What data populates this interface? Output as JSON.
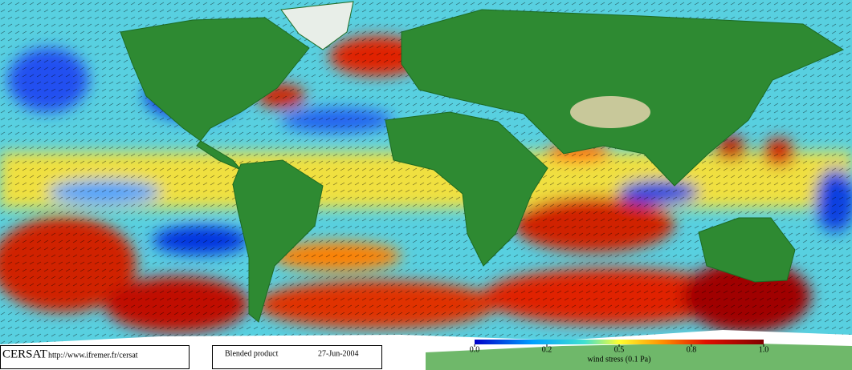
{
  "footer": {
    "logo": "CERSAT",
    "url": "http://www.ifremer.fr/cersat",
    "product": "Blended product",
    "date": "27-Jun-2004"
  },
  "colorbar": {
    "label": "wind stress (0.1 Pa)",
    "ticks": [
      {
        "value": 0,
        "label": "0.0"
      },
      0.2,
      0.5,
      0.8,
      {
        "value": 1,
        "label": "1.0"
      }
    ]
  }
}
